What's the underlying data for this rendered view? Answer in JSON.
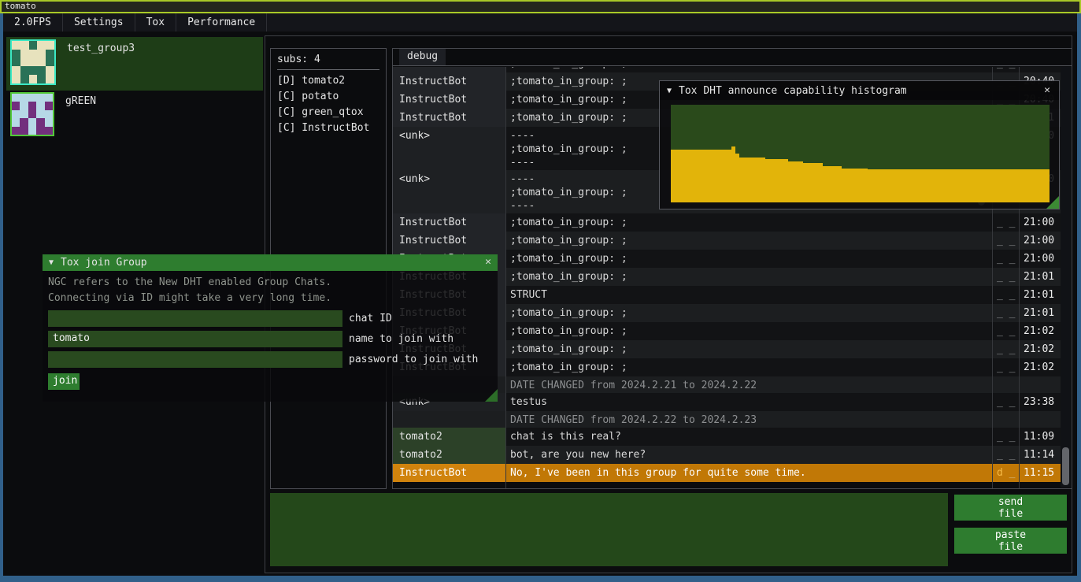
{
  "titlebar": {
    "title": "tomato"
  },
  "menubar": {
    "items": [
      "2.0FPS",
      "Settings",
      "Tox",
      "Performance"
    ]
  },
  "sidebar": {
    "groups": [
      {
        "name": "test_group3",
        "selected": true,
        "avatar": {
          "bg": "#e7e2bd",
          "fg": "#2a7257",
          "border": "#3be8c4",
          "grid": [
            "00100",
            "10001",
            "10001",
            "01110",
            "01010"
          ]
        }
      },
      {
        "name": "gREEN",
        "selected": false,
        "avatar": {
          "bg": "#b6d8e6",
          "fg": "#722f7d",
          "border": "#52c838",
          "grid": [
            "00000",
            "10101",
            "00100",
            "01010",
            "11011"
          ]
        }
      }
    ]
  },
  "subs_panel": {
    "header": "subs: 4",
    "members": [
      {
        "tag": "[D]",
        "name": "tomato2"
      },
      {
        "tag": "[C]",
        "name": "potato"
      },
      {
        "tag": "[C]",
        "name": "green_qtox"
      },
      {
        "tag": "[C]",
        "name": "InstructBot"
      }
    ]
  },
  "chat": {
    "tab": "debug",
    "rows": [
      {
        "type": "msg",
        "shade": "dark",
        "name": "InstructBot",
        "name_style": "bot",
        "text": ";tomato_in_group: ;",
        "status": "_ _",
        "time": "20:40"
      },
      {
        "type": "msg",
        "shade": "light",
        "name": "InstructBot",
        "name_style": "bot",
        "text": ";tomato_in_group: ;",
        "status": "_ _",
        "time": "20:40"
      },
      {
        "type": "msg",
        "shade": "dark",
        "name": "InstructBot",
        "name_style": "bot",
        "text": ";tomato_in_group: ;",
        "status": "_ _",
        "time": "20:40"
      },
      {
        "type": "msg",
        "shade": "light",
        "name": "InstructBot",
        "name_style": "bot",
        "text": ";tomato_in_group: ;",
        "status": "_ _",
        "time": "20:41"
      },
      {
        "type": "multi",
        "shade": "dark",
        "name": "<unk>",
        "name_style": "unk",
        "lines": [
          "----",
          ";tomato_in_group: ;",
          "----"
        ],
        "status": "_ _",
        "time": "21:00"
      },
      {
        "type": "multi",
        "shade": "light",
        "name": "<unk>",
        "name_style": "unk",
        "lines": [
          "----",
          ";tomato_in_group: ;",
          "----"
        ],
        "status": "_ _",
        "time": "21:00",
        "scroll": true
      },
      {
        "type": "msg",
        "shade": "dark",
        "name": "InstructBot",
        "name_style": "bot",
        "text": ";tomato_in_group: ;",
        "status": "_ _",
        "time": "21:00"
      },
      {
        "type": "msg",
        "shade": "light",
        "name": "InstructBot",
        "name_style": "bot",
        "text": ";tomato_in_group: ;",
        "status": "_ _",
        "time": "21:00"
      },
      {
        "type": "msg",
        "shade": "dark",
        "name": "InstructBot",
        "name_style": "bot",
        "text": ";tomato_in_group: ;",
        "status": "_ _",
        "time": "21:00"
      },
      {
        "type": "msg",
        "shade": "light",
        "name": "InstructBot",
        "name_style": "bot",
        "text": ";tomato_in_group: ;",
        "status": "_ _",
        "time": "21:01"
      },
      {
        "type": "msg",
        "shade": "dark",
        "name": "InstructBot",
        "name_style": "bot",
        "text": "STRUCT",
        "status": "_ _",
        "time": "21:01"
      },
      {
        "type": "msg",
        "shade": "light",
        "name": "InstructBot",
        "name_style": "bot",
        "text": ";tomato_in_group: ;",
        "status": "_ _",
        "time": "21:01"
      },
      {
        "type": "msg",
        "shade": "dark",
        "name": "InstructBot",
        "name_style": "bot",
        "text": ";tomato_in_group: ;",
        "status": "_ _",
        "time": "21:02"
      },
      {
        "type": "msg",
        "shade": "light",
        "name": "InstructBot",
        "name_style": "bot",
        "text": ";tomato_in_group: ;",
        "status": "_ _",
        "time": "21:02"
      },
      {
        "type": "msg",
        "shade": "dark",
        "name": "InstructBot",
        "name_style": "bot",
        "text": ";tomato_in_group: ;",
        "status": "_ _",
        "time": "21:02"
      },
      {
        "type": "date",
        "shade": "light",
        "text": "DATE CHANGED from 2024.2.21 to 2024.2.22"
      },
      {
        "type": "msg",
        "shade": "dark",
        "name": "<unk>",
        "name_style": "unk",
        "text": "testus",
        "status": "_ _",
        "time": "23:38"
      },
      {
        "type": "date",
        "shade": "light",
        "text": "DATE CHANGED from 2024.2.22 to 2024.2.23"
      },
      {
        "type": "msg",
        "shade": "dark",
        "name": "tomato2",
        "name_style": "self",
        "text": "chat is this real?",
        "status": "_ _",
        "time": "11:09"
      },
      {
        "type": "msg",
        "shade": "light",
        "name": "tomato2",
        "name_style": "self",
        "text": "bot, are you new here?",
        "status": "_ _",
        "time": "11:14"
      },
      {
        "type": "msg",
        "shade": "hl",
        "name": "InstructBot",
        "name_style": "hl",
        "text": "No, I've been in this group for quite some time.",
        "status": "d _",
        "status_accent": true,
        "time": "11:15"
      }
    ]
  },
  "composer": {
    "message_value": "",
    "send_label": "send\nfile",
    "paste_label": "paste\nfile"
  },
  "join_window": {
    "collapse_icon": "▼",
    "title": "Tox join Group",
    "close_icon": "✕",
    "description_lines": [
      "NGC refers to the New DHT enabled Group Chats.",
      "Connecting via ID might take a very long time."
    ],
    "fields": [
      {
        "value": "",
        "label": "chat ID"
      },
      {
        "value": "tomato",
        "label": "name to join with"
      },
      {
        "value": "",
        "label": "password to join with"
      }
    ],
    "join_label": "join"
  },
  "histogram_window": {
    "collapse_icon": "▼",
    "title": "Tox DHT announce capability histogram",
    "close_icon": "✕",
    "chart_data": {
      "type": "histogram",
      "title": "Tox DHT announce capability histogram",
      "ylim": [
        0,
        1
      ],
      "bar_color": "#e2b40a",
      "frame_color": "#2a4a1b",
      "values": [
        0.54,
        0.54,
        0.54,
        0.54,
        0.54,
        0.54,
        0.54,
        0.54,
        0.54,
        0.54,
        0.54,
        0.54,
        0.54,
        0.54,
        0.54,
        0.54,
        0.57,
        0.5,
        0.46,
        0.46,
        0.46,
        0.46,
        0.46,
        0.46,
        0.46,
        0.44,
        0.44,
        0.44,
        0.44,
        0.44,
        0.44,
        0.42,
        0.42,
        0.42,
        0.42,
        0.4,
        0.4,
        0.4,
        0.4,
        0.4,
        0.37,
        0.37,
        0.37,
        0.37,
        0.37,
        0.35,
        0.35,
        0.35,
        0.35,
        0.345,
        0.345,
        0.345,
        0.34,
        0.34,
        0.34,
        0.34,
        0.34,
        0.34,
        0.34,
        0.34,
        0.34,
        0.34,
        0.34,
        0.34,
        0.34,
        0.34,
        0.34,
        0.34,
        0.34,
        0.34,
        0.34,
        0.34,
        0.34,
        0.34,
        0.34,
        0.34,
        0.34,
        0.34,
        0.34,
        0.34,
        0.34,
        0.34,
        0.34,
        0.34,
        0.34,
        0.34,
        0.34,
        0.34,
        0.34,
        0.34,
        0.34,
        0.34,
        0.34,
        0.34,
        0.34,
        0.34,
        0.34,
        0.34,
        0.34,
        0.34
      ]
    }
  },
  "colors": {
    "accent_green": "#2e7d2f",
    "highlight_orange": "#c17806",
    "plot_yellow": "#e2b40a",
    "plot_green": "#2a4a1b",
    "border_blue": "#31608a",
    "border_lime": "#a9c927",
    "status_accent": "#f5b945"
  }
}
